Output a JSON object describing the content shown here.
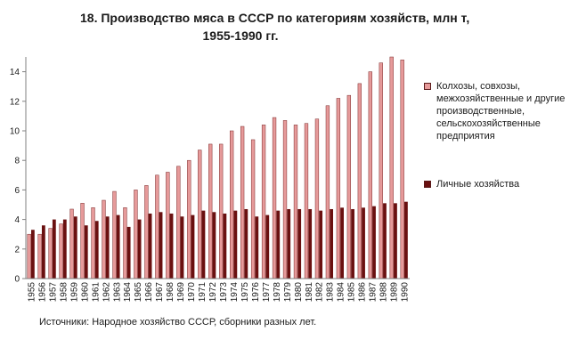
{
  "title_line1": "18. Производство мяса в СССР по категориям хозяйств, млн т,",
  "title_line2": "1955-1990 гг.",
  "source_note": "Источники: Народное хозяйство СССР, сборники разных лет.",
  "chart_data": {
    "type": "bar",
    "title": "18. Производство мяса в СССР по категориям хозяйств, млн т, 1955-1990 гг.",
    "xlabel": "",
    "ylabel": "",
    "ylim": [
      0,
      15
    ],
    "yticks": [
      0,
      2,
      4,
      6,
      8,
      10,
      12,
      14
    ],
    "grid": false,
    "legend_position": "right",
    "categories": [
      "1955",
      "1956",
      "1957",
      "1958",
      "1959",
      "1960",
      "1961",
      "1962",
      "1963",
      "1964",
      "1965",
      "1966",
      "1967",
      "1968",
      "1969",
      "1970",
      "1971",
      "1972",
      "1973",
      "1974",
      "1975",
      "1976",
      "1977",
      "1978",
      "1979",
      "1980",
      "1981",
      "1982",
      "1983",
      "1984",
      "1985",
      "1986",
      "1987",
      "1988",
      "1989",
      "1990"
    ],
    "series": [
      {
        "name": "Колхозы, совхозы, межхозяйственные и другие производственные, сельскохозяйственные предприятия",
        "color": "#e69a9a",
        "values": [
          3.0,
          3.0,
          3.4,
          3.7,
          4.7,
          5.1,
          4.8,
          5.3,
          5.9,
          4.8,
          6.0,
          6.3,
          7.0,
          7.2,
          7.6,
          8.0,
          8.7,
          9.1,
          9.1,
          10.0,
          10.3,
          9.4,
          10.4,
          10.9,
          10.7,
          10.4,
          10.5,
          10.8,
          11.7,
          12.2,
          12.4,
          13.2,
          14.0,
          14.6,
          15.0,
          14.8
        ]
      },
      {
        "name": "Личные хозяйства",
        "color": "#6a1010",
        "values": [
          3.3,
          3.6,
          4.0,
          4.0,
          4.2,
          3.6,
          3.9,
          4.2,
          4.3,
          3.5,
          4.0,
          4.4,
          4.5,
          4.4,
          4.2,
          4.3,
          4.6,
          4.5,
          4.4,
          4.6,
          4.7,
          4.2,
          4.3,
          4.6,
          4.7,
          4.7,
          4.7,
          4.6,
          4.7,
          4.8,
          4.7,
          4.8,
          4.9,
          5.1,
          5.1,
          5.2
        ]
      }
    ]
  }
}
